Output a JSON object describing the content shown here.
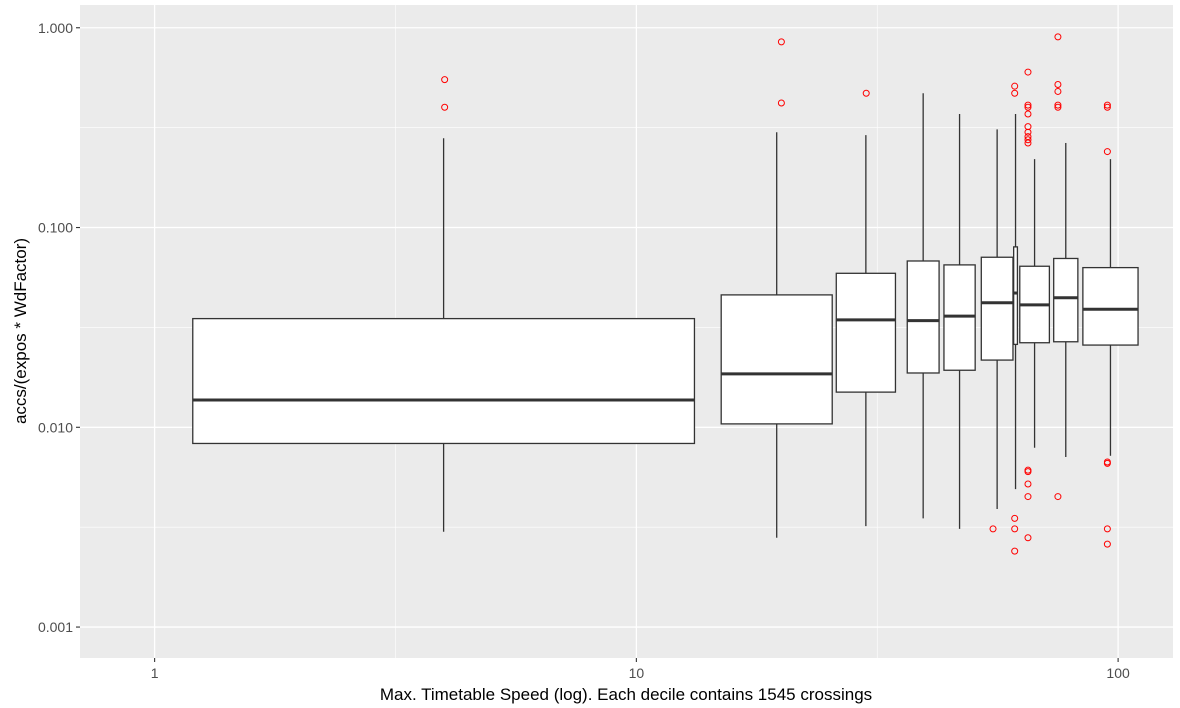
{
  "chart_data": {
    "type": "boxplot",
    "xlabel": "Max. Timetable Speed (log). Each decile contains 1545 crossings",
    "ylabel": "accs/(expos * WdFactor)",
    "x_scale": "log10",
    "y_scale": "log10",
    "xlim": [
      0.7,
      130
    ],
    "ylim": [
      0.0007,
      1.3
    ],
    "x_ticks": [
      1,
      10,
      100
    ],
    "x_tick_labels": [
      "1",
      "10",
      "100"
    ],
    "y_ticks": [
      0.001,
      0.01,
      0.1,
      1
    ],
    "y_tick_labels": [
      "0.001",
      "0.010",
      "0.100",
      "1.000"
    ],
    "grid": true,
    "boxes": [
      {
        "x": 4,
        "xmin": 1.2,
        "xmax": 13.2,
        "whisker_low": 0.003,
        "q1": 0.0083,
        "median": 0.0137,
        "q3": 0.035,
        "whisker_high": 0.28,
        "outliers": [
          0.55,
          0.4
        ]
      },
      {
        "x": 20,
        "xmin": 15,
        "xmax": 25.5,
        "whisker_low": 0.0028,
        "q1": 0.0104,
        "median": 0.0185,
        "q3": 0.046,
        "whisker_high": 0.3,
        "outliers": [
          0.85,
          0.42
        ]
      },
      {
        "x": 30,
        "xmin": 26,
        "xmax": 34.5,
        "whisker_low": 0.0032,
        "q1": 0.015,
        "median": 0.0345,
        "q3": 0.059,
        "whisker_high": 0.29,
        "outliers": [
          0.47
        ]
      },
      {
        "x": 40,
        "xmin": 36.5,
        "xmax": 42.5,
        "whisker_low": 0.0035,
        "q1": 0.0187,
        "median": 0.0342,
        "q3": 0.068,
        "whisker_high": 0.47,
        "outliers": []
      },
      {
        "x": 45,
        "xmin": 43.5,
        "xmax": 50.5,
        "whisker_low": 0.0031,
        "q1": 0.0193,
        "median": 0.036,
        "q3": 0.065,
        "whisker_high": 0.37,
        "outliers": []
      },
      {
        "x": 55,
        "xmin": 52,
        "xmax": 60.5,
        "whisker_low": 0.0039,
        "q1": 0.0217,
        "median": 0.042,
        "q3": 0.071,
        "whisker_high": 0.31,
        "outliers": [
          0.0031
        ]
      },
      {
        "x": 61,
        "xmin": 60.7,
        "xmax": 61.8,
        "whisker_low": 0.0049,
        "q1": 0.026,
        "median": 0.047,
        "q3": 0.08,
        "whisker_high": 0.37,
        "outliers": [
          0.51,
          0.47,
          0.0035,
          0.0031,
          0.0024
        ]
      },
      {
        "x": 65,
        "xmin": 62.5,
        "xmax": 72,
        "whisker_low": 0.0079,
        "q1": 0.0265,
        "median": 0.041,
        "q3": 0.064,
        "whisker_high": 0.22,
        "outliers": [
          0.6,
          0.41,
          0.4,
          0.37,
          0.32,
          0.3,
          0.285,
          0.275,
          0.265,
          0.0061,
          0.006,
          0.0052,
          0.0045,
          0.0028
        ]
      },
      {
        "x": 75,
        "xmin": 73.5,
        "xmax": 82.5,
        "whisker_low": 0.0071,
        "q1": 0.0268,
        "median": 0.0445,
        "q3": 0.07,
        "whisker_high": 0.265,
        "outliers": [
          0.9,
          0.52,
          0.48,
          0.41,
          0.4,
          0.0045
        ]
      },
      {
        "x": 95,
        "xmin": 84.5,
        "xmax": 110,
        "whisker_low": 0.0072,
        "q1": 0.0258,
        "median": 0.039,
        "q3": 0.063,
        "whisker_high": 0.22,
        "outliers": [
          0.41,
          0.4,
          0.24,
          0.0067,
          0.0066,
          0.0031,
          0.0026
        ]
      }
    ],
    "colors": {
      "panel": "#ebebeb",
      "grid_major": "#ffffff",
      "box_fill": "#ffffff",
      "box_line": "#333333",
      "outlier": "#ff0000",
      "tick_text": "#4d4d4d"
    }
  }
}
